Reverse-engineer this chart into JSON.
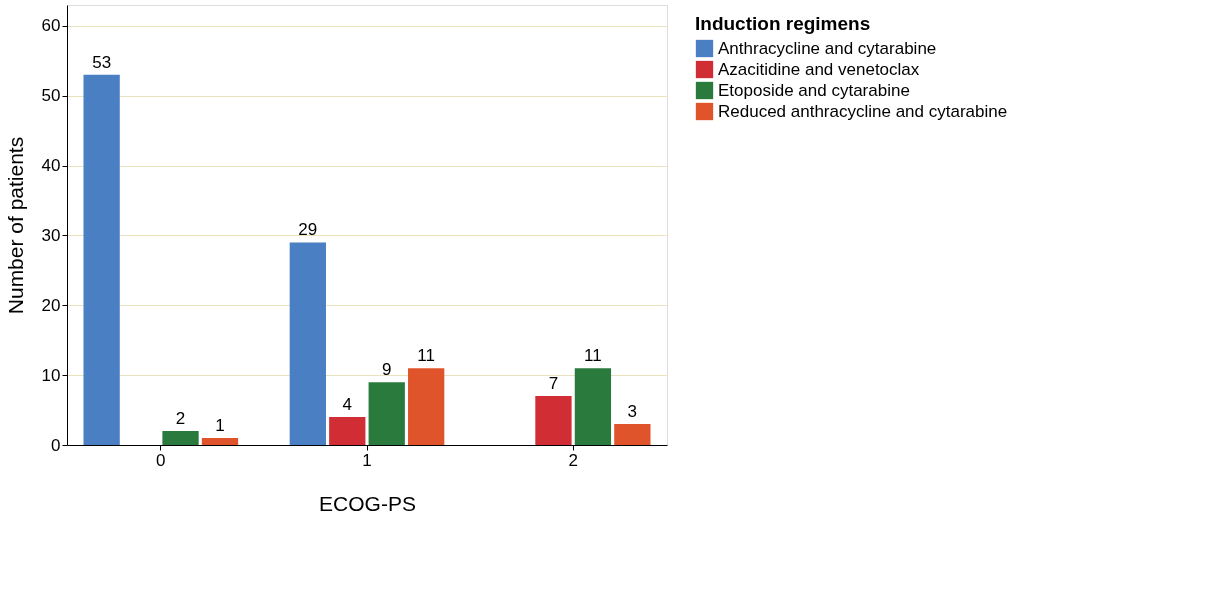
{
  "chart_data": {
    "type": "bar",
    "xlabel": "ECOG-PS",
    "ylabel": "Number of patients",
    "legend_title": "Induction regimens",
    "categories": [
      "0",
      "1",
      "2"
    ],
    "series": [
      {
        "name": "Anthracycline and cytarabine",
        "color": "#4a7fc4",
        "values": [
          53,
          29,
          null
        ]
      },
      {
        "name": "Azacitidine and venetoclax",
        "color": "#d12d35",
        "values": [
          null,
          4,
          7
        ]
      },
      {
        "name": "Etoposide and cytarabine",
        "color": "#2a7a3e",
        "values": [
          2,
          9,
          11
        ]
      },
      {
        "name": "Reduced anthracycline and cytarabine",
        "color": "#e0542b",
        "values": [
          1,
          11,
          3
        ]
      }
    ],
    "ylim": [
      0,
      63
    ],
    "yticks": [
      0,
      10,
      20,
      30,
      40,
      50,
      60
    ],
    "grid": "y",
    "legend": "right",
    "data_labels": true
  }
}
